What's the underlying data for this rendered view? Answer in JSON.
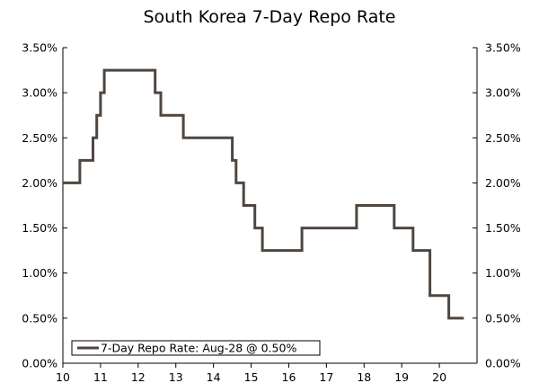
{
  "chart_data": {
    "type": "line",
    "title": "South Korea 7-Day Repo Rate",
    "xlabel": "",
    "ylabel": "",
    "xlim": [
      10,
      21
    ],
    "ylim": [
      0,
      3.5
    ],
    "x_ticks": [
      "10",
      "11",
      "12",
      "13",
      "14",
      "15",
      "16",
      "17",
      "18",
      "19",
      "20"
    ],
    "y_ticks_left": [
      "0.00%",
      "0.50%",
      "1.00%",
      "1.50%",
      "2.00%",
      "2.50%",
      "3.00%",
      "3.50%"
    ],
    "y_ticks_right": [
      "0.00%",
      "0.50%",
      "1.00%",
      "1.50%",
      "2.00%",
      "2.50%",
      "3.00%",
      "3.50%"
    ],
    "grid": false,
    "legend_position": "bottom-left",
    "line_color": "#4f4640",
    "series": [
      {
        "name": "7-Day Repo Rate: Aug-28 @ 0.50%",
        "x": [
          10.0,
          10.45,
          10.45,
          10.8,
          10.8,
          10.9,
          10.9,
          11.0,
          11.0,
          11.1,
          11.1,
          11.45,
          11.45,
          12.45,
          12.45,
          12.6,
          12.6,
          13.2,
          13.2,
          14.5,
          14.5,
          14.6,
          14.6,
          14.8,
          14.8,
          15.1,
          15.1,
          15.3,
          15.3,
          16.35,
          16.35,
          17.8,
          17.8,
          18.8,
          18.8,
          19.3,
          19.3,
          19.45,
          19.45,
          19.75,
          19.75,
          20.2,
          20.2,
          20.25,
          20.25,
          20.4,
          20.4,
          20.65
        ],
        "y": [
          2.0,
          2.0,
          2.25,
          2.25,
          2.5,
          2.5,
          2.75,
          2.75,
          3.0,
          3.0,
          3.25,
          3.25,
          3.25,
          3.25,
          3.0,
          3.0,
          2.75,
          2.75,
          2.5,
          2.5,
          2.25,
          2.25,
          2.0,
          2.0,
          1.75,
          1.75,
          1.5,
          1.5,
          1.25,
          1.25,
          1.5,
          1.5,
          1.75,
          1.75,
          1.5,
          1.5,
          1.25,
          1.25,
          1.25,
          1.25,
          0.75,
          0.75,
          0.75,
          0.75,
          0.5,
          0.5,
          0.5,
          0.5
        ]
      }
    ]
  }
}
